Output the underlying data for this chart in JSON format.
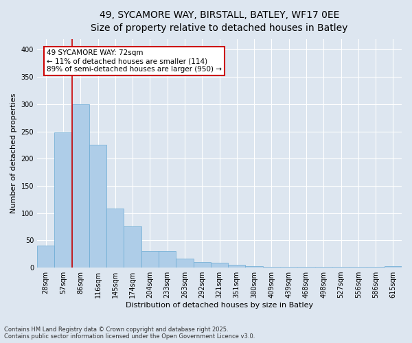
{
  "title_line1": "49, SYCAMORE WAY, BIRSTALL, BATLEY, WF17 0EE",
  "title_line2": "Size of property relative to detached houses in Batley",
  "xlabel": "Distribution of detached houses by size in Batley",
  "ylabel": "Number of detached properties",
  "categories": [
    "28sqm",
    "57sqm",
    "86sqm",
    "116sqm",
    "145sqm",
    "174sqm",
    "204sqm",
    "233sqm",
    "263sqm",
    "292sqm",
    "321sqm",
    "351sqm",
    "380sqm",
    "409sqm",
    "439sqm",
    "468sqm",
    "498sqm",
    "527sqm",
    "556sqm",
    "586sqm",
    "615sqm"
  ],
  "values": [
    40,
    248,
    300,
    225,
    108,
    76,
    30,
    30,
    17,
    10,
    9,
    5,
    3,
    1,
    1,
    1,
    1,
    1,
    1,
    1,
    2
  ],
  "bar_color": "#aecde8",
  "bar_edge_color": "#6aaad4",
  "vline_color": "#cc0000",
  "annotation_text": "49 SYCAMORE WAY: 72sqm\n← 11% of detached houses are smaller (114)\n89% of semi-detached houses are larger (950) →",
  "annotation_box_color": "#ffffff",
  "annotation_box_edge": "#cc0000",
  "background_color": "#dde6f0",
  "plot_background": "#dde6f0",
  "footer_line1": "Contains HM Land Registry data © Crown copyright and database right 2025.",
  "footer_line2": "Contains public sector information licensed under the Open Government Licence v3.0.",
  "ylim": [
    0,
    420
  ],
  "yticks": [
    0,
    50,
    100,
    150,
    200,
    250,
    300,
    350,
    400
  ],
  "title_fontsize": 10,
  "subtitle_fontsize": 9,
  "tick_fontsize": 7,
  "ylabel_fontsize": 8,
  "xlabel_fontsize": 8,
  "footer_fontsize": 6,
  "annotation_fontsize": 7.5,
  "vline_x_index": 1
}
